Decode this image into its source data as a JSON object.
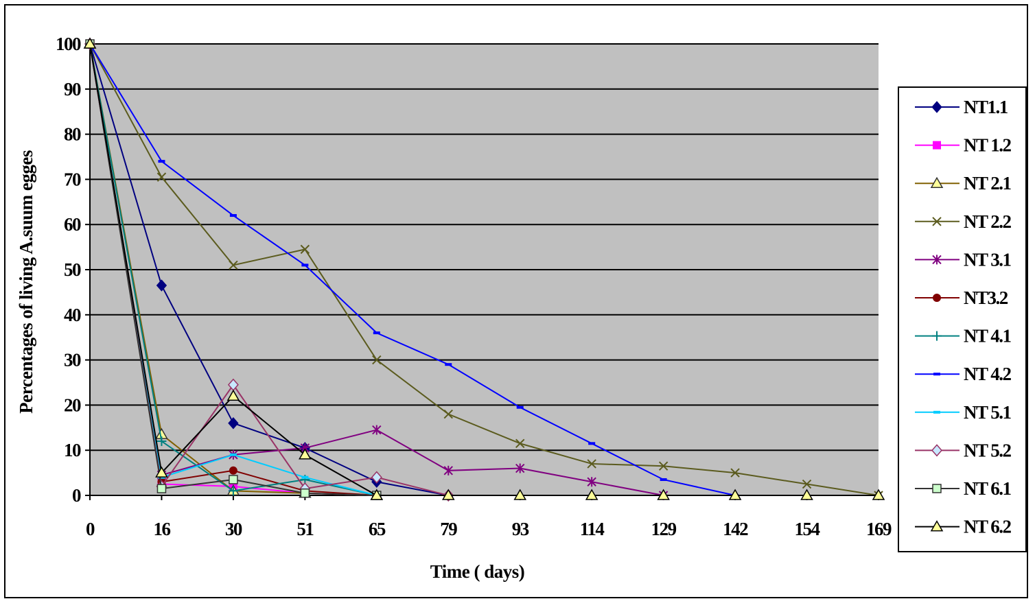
{
  "chart_data": {
    "type": "line",
    "title": "",
    "xlabel": "Time ( days)",
    "ylabel": "Percentages of living A.suum egges",
    "categories": [
      "0",
      "16",
      "30",
      "51",
      "65",
      "79",
      "93",
      "114",
      "129",
      "142",
      "154",
      "169"
    ],
    "ylim": [
      0,
      100
    ],
    "yticks": [
      0,
      10,
      20,
      30,
      40,
      50,
      60,
      70,
      80,
      90,
      100
    ],
    "grid": true,
    "plot_background": "#c0c0c0",
    "legend_position": "right",
    "series": [
      {
        "name": "NT1.1",
        "color": "#000080",
        "marker": "diamond",
        "values": [
          100,
          46.5,
          16,
          10.5,
          3,
          0,
          null,
          null,
          null,
          null,
          null,
          null
        ]
      },
      {
        "name": "NT 1.2",
        "color": "#ff00ff",
        "marker": "square",
        "values": [
          100,
          2.5,
          2,
          0.5,
          0,
          null,
          null,
          null,
          null,
          null,
          null,
          null
        ]
      },
      {
        "name": "NT 2.1",
        "color": "#806000",
        "marker": "triangle",
        "values": [
          100,
          13.5,
          1,
          0.5,
          0,
          null,
          null,
          null,
          null,
          null,
          null,
          null
        ]
      },
      {
        "name": "NT 2.2",
        "color": "#5b5b1e",
        "marker": "x",
        "values": [
          100,
          70.5,
          51,
          54.5,
          30,
          18,
          11.5,
          7,
          6.5,
          5,
          2.5,
          0
        ]
      },
      {
        "name": "NT 3.1",
        "color": "#800080",
        "marker": "star",
        "values": [
          100,
          4.5,
          9,
          10.5,
          14.5,
          5.5,
          6,
          3,
          0,
          null,
          null,
          null
        ]
      },
      {
        "name": "NT3.2",
        "color": "#800000",
        "marker": "circle",
        "values": [
          100,
          3,
          5.5,
          1,
          0,
          null,
          null,
          null,
          null,
          null,
          null,
          null
        ]
      },
      {
        "name": "NT 4.1",
        "color": "#008080",
        "marker": "plus",
        "values": [
          100,
          12,
          1,
          3.5,
          0,
          null,
          null,
          null,
          null,
          null,
          null,
          null
        ]
      },
      {
        "name": "NT 4.2",
        "color": "#0000ff",
        "marker": "dash",
        "values": [
          100,
          74,
          62,
          51,
          36,
          29,
          19.5,
          11.5,
          3.5,
          0,
          null,
          null
        ]
      },
      {
        "name": "NT 5.1",
        "color": "#00ccff",
        "marker": "dash",
        "values": [
          100,
          4,
          9,
          4,
          0,
          null,
          null,
          null,
          null,
          null,
          null,
          null
        ]
      },
      {
        "name": "NT 5.2",
        "color": "#993366",
        "marker": "diamond-open",
        "values": [
          100,
          2,
          24.5,
          1.5,
          4,
          0,
          null,
          null,
          null,
          null,
          null,
          null
        ]
      },
      {
        "name": "NT 6.1",
        "color": "#333333",
        "marker": "square-open",
        "values": [
          100,
          1.5,
          3.5,
          0.5,
          0,
          null,
          null,
          null,
          null,
          null,
          null,
          null
        ]
      },
      {
        "name": "NT 6.2",
        "color": "#000000",
        "marker": "triangle-open",
        "values": [
          100,
          5,
          22,
          9,
          0,
          0,
          0,
          0,
          0,
          0,
          0,
          0
        ]
      }
    ]
  }
}
